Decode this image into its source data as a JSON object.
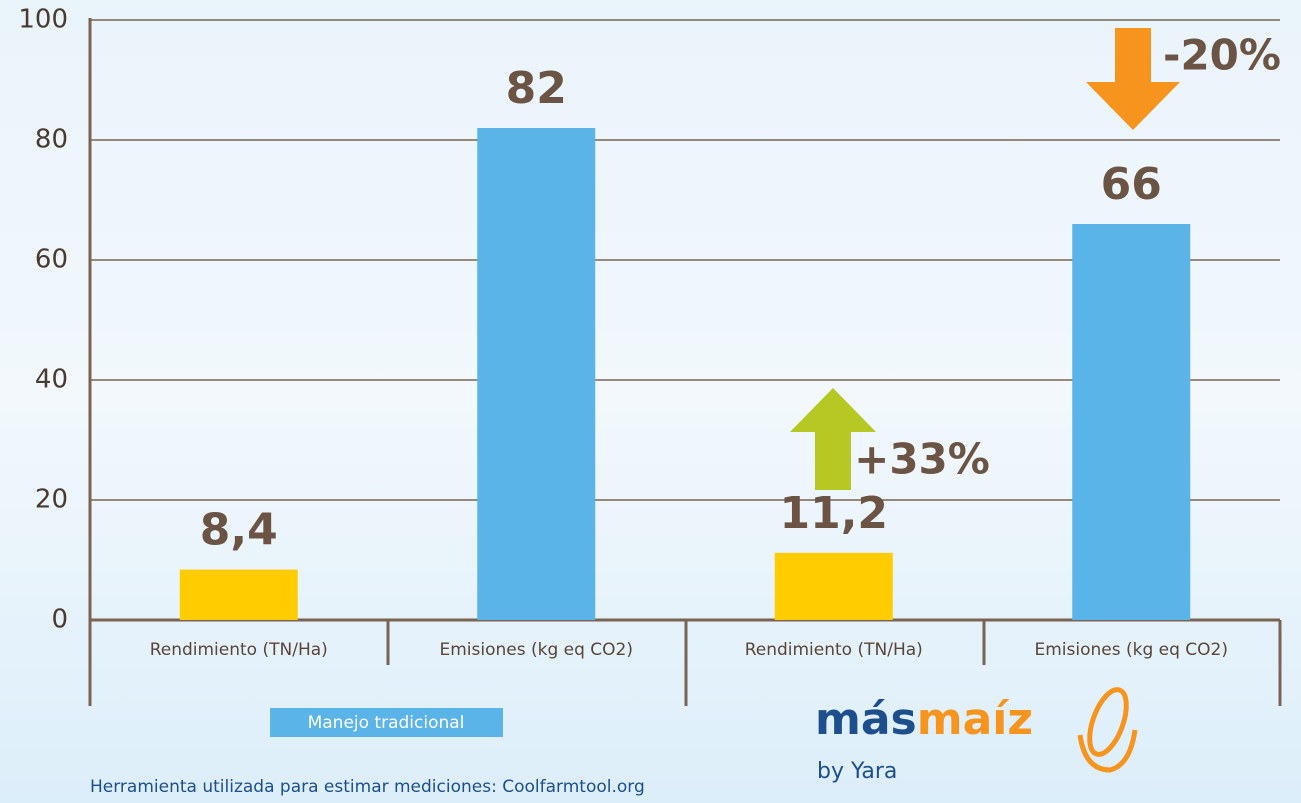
{
  "chart_data": {
    "type": "bar",
    "categories": [
      "Rendimiento (TN/Ha)",
      "Emisiones (kg eq CO2)",
      "Rendimiento (TN/Ha)",
      "Emisiones (kg eq CO2)"
    ],
    "values": [
      8.4,
      82,
      11.2,
      66
    ],
    "value_labels": [
      "8,4",
      "82",
      "11,2",
      "66"
    ],
    "colors": [
      "#ffcc00",
      "#5ab4e8",
      "#ffcc00",
      "#5ab4e8"
    ],
    "groups": [
      "Manejo tradicional"
    ],
    "ylim": [
      0,
      100
    ],
    "yticks": [
      0,
      20,
      40,
      60,
      80,
      100
    ],
    "grid": true,
    "annotations": [
      {
        "text": "+33%",
        "color": "#b5c823"
      },
      {
        "text": "-20%",
        "color": "#f7941d"
      }
    ]
  },
  "logo": {
    "part1": "más",
    "part2": "maíz",
    "subtitle": "by Yara"
  },
  "footnote": "Herramienta utilizada para estimar mediciones: Coolfarmtool.org"
}
